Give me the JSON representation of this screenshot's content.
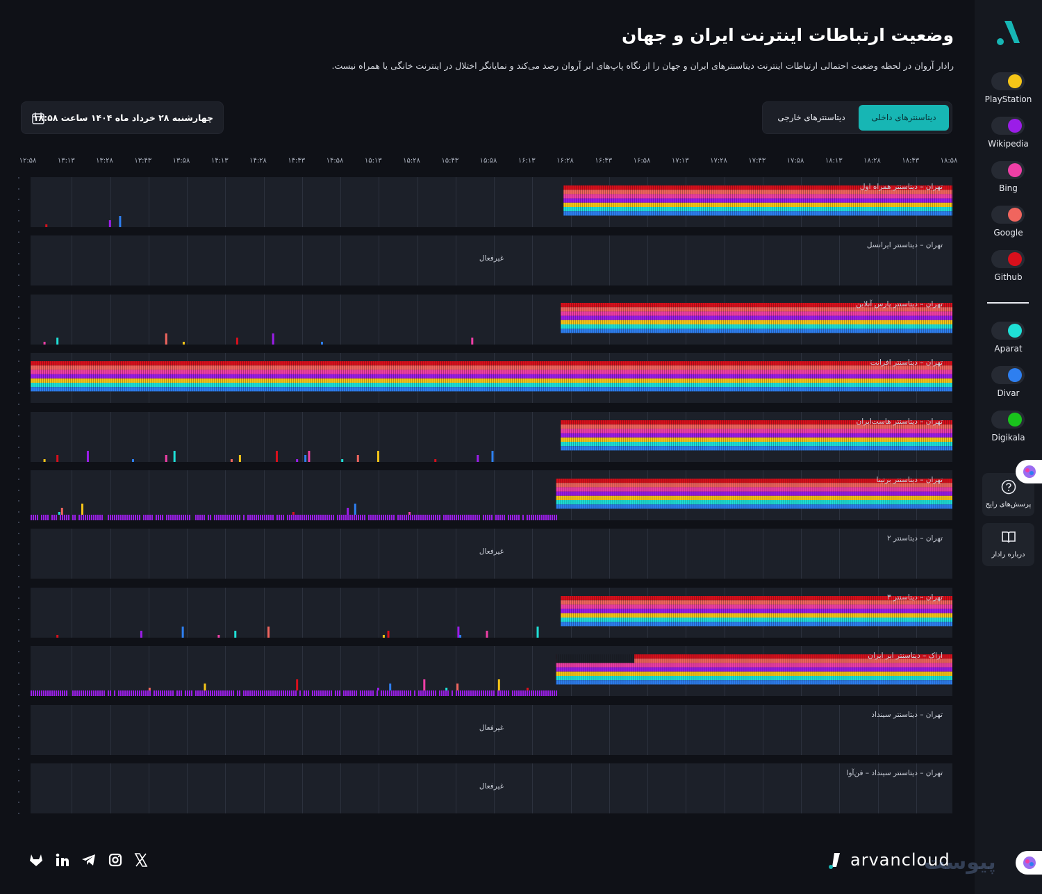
{
  "header": {
    "title": "وضعیت ارتباطات اینترنت ایران و جهان",
    "subtitle": "رادار آروان در لحظه وضعیت احتمالی ارتباطات اینترنت دیتاسنترهای ایران و جهان را از نگاه پاپ‌های ابر آروان رصد می‌کند و نمایانگر اختلال در اینترنت خانگی یا همراه نیست."
  },
  "date_picker": {
    "value": "چهارشنبه ۲۸ خرداد ماه ۱۴۰۴ ساعت ۱۸:۵۸",
    "icon": "calendar-icon"
  },
  "tabs": {
    "internal": "دیتاسنترهای داخلی",
    "external": "دیتاسنترهای خارجی",
    "active": "internal"
  },
  "time_axis": [
    "۱۲:۵۸",
    "۱۳:۱۳",
    "۱۳:۲۸",
    "۱۳:۴۳",
    "۱۳:۵۸",
    "۱۴:۱۳",
    "۱۴:۲۸",
    "۱۴:۴۳",
    "۱۴:۵۸",
    "۱۵:۱۳",
    "۱۵:۲۸",
    "۱۵:۴۳",
    "۱۵:۵۸",
    "۱۶:۱۳",
    "۱۶:۲۸",
    "۱۶:۴۳",
    "۱۶:۵۸",
    "۱۷:۱۳",
    "۱۷:۲۸",
    "۱۷:۴۳",
    "۱۷:۵۸",
    "۱۸:۱۳",
    "۱۸:۲۸",
    "۱۸:۴۳",
    "۱۸:۵۸"
  ],
  "inactive_label": "غیرفعال",
  "datacenters": [
    {
      "label": "تهران – دیتاسنتر همراه اول",
      "active": true,
      "full_from": 0.578,
      "sparse": [
        0.016,
        0.085,
        0.096
      ]
    },
    {
      "label": "تهران – دیتاسنتر ایرانسل",
      "active": false
    },
    {
      "label": "تهران – دیتاسنتر پارس آنلاین",
      "active": true,
      "full_from": 0.575,
      "sparse": [
        0.014,
        0.028,
        0.146,
        0.165,
        0.223,
        0.262,
        0.315,
        0.478
      ]
    },
    {
      "label": "تهران – دیتاسنتر افرانت",
      "active": true,
      "full_from": 0.0,
      "sparse": []
    },
    {
      "label": "تهران – دیتاسنتر هاست‌ایران",
      "active": true,
      "full_from": 0.575,
      "sparse": [
        0.014,
        0.028,
        0.061,
        0.11,
        0.146,
        0.155,
        0.217,
        0.226,
        0.266,
        0.288,
        0.297,
        0.301,
        0.337,
        0.354,
        0.376,
        0.438,
        0.484,
        0.5
      ]
    },
    {
      "label": "تهران – دیتاسنتر برتینا",
      "active": true,
      "full_from": 0.57,
      "sparse": [
        0.03,
        0.033,
        0.055,
        0.284,
        0.343,
        0.351,
        0.41
      ],
      "baseline": true
    },
    {
      "label": "تهران – دیتاسنتر ۲",
      "active": false
    },
    {
      "label": "تهران – دیتاسنتر ۳",
      "active": true,
      "full_from": 0.575,
      "sparse": [
        0.028,
        0.119,
        0.164,
        0.203,
        0.221,
        0.257,
        0.382,
        0.387,
        0.463,
        0.465,
        0.494,
        0.549
      ]
    },
    {
      "label": "اراک – دیتاسنتر ابر ایران",
      "active": true,
      "full_from": 0.57,
      "sparse": [
        0.128,
        0.188,
        0.288,
        0.376,
        0.389,
        0.426,
        0.45,
        0.462,
        0.507,
        0.538
      ],
      "baseline": true,
      "half_until": 0.655
    },
    {
      "label": "تهران – دیتاسنتر سینداد",
      "active": false
    },
    {
      "label": "تهران – دیتاسنتر سینداد – فن‌آوا",
      "active": false
    }
  ],
  "services_external": [
    {
      "name": "PlayStation",
      "color": "#f5c518"
    },
    {
      "name": "Wikipedia",
      "color": "#9b1de8"
    },
    {
      "name": "Bing",
      "color": "#ee3fa6"
    },
    {
      "name": "Google",
      "color": "#f0655e"
    },
    {
      "name": "Github",
      "color": "#d8101c"
    }
  ],
  "services_internal": [
    {
      "name": "Aparat",
      "color": "#1fe0d7"
    },
    {
      "name": "Divar",
      "color": "#2e7ff0"
    },
    {
      "name": "Digikala",
      "color": "#19c41c"
    }
  ],
  "side_buttons": {
    "faq": "پرسش‌های رایج",
    "about": "درباره رادار"
  },
  "footer": {
    "brand": "arvancloud",
    "watermark": "پیوست",
    "social": [
      "gitlab-icon",
      "linkedin-icon",
      "telegram-icon",
      "instagram-icon",
      "x-icon"
    ]
  }
}
